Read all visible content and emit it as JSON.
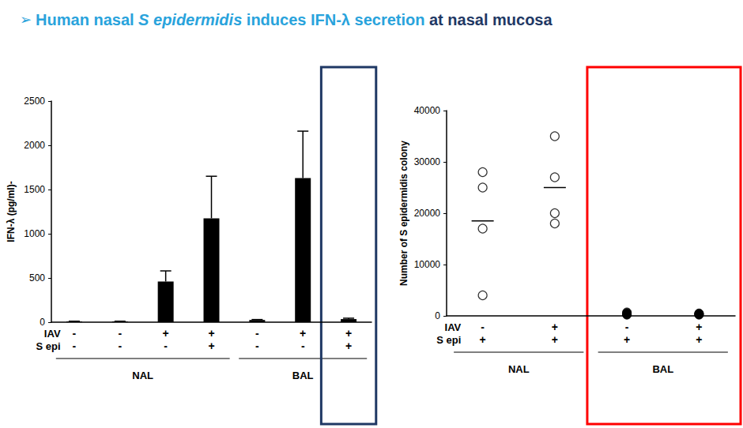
{
  "header": {
    "title": [
      "➢ ",
      "Human nasal ",
      "S epidermidis",
      " induces IFN-λ secretion",
      " at nasal mucosa"
    ]
  },
  "chart_data": [
    {
      "type": "bar",
      "y_label": "IFN-λ (pg/ml)-",
      "categories": [
        "-\n-",
        "-\n-",
        "+\n-",
        "+\n+",
        "-\n-",
        "+\n-",
        "+\n+"
      ],
      "row_labels": [
        "IAV",
        "S epi"
      ],
      "groups": [
        {
          "label": "NAL",
          "size": 4
        },
        {
          "label": "BAL",
          "size": 3
        }
      ],
      "values": [
        8,
        8,
        460,
        1175,
        25,
        1630,
        35
      ],
      "errors": [
        3,
        3,
        120,
        475,
        5,
        530,
        10
      ],
      "color": "#000000",
      "ylim": [
        0,
        2500
      ],
      "yticks": [
        0,
        500,
        1000,
        1500,
        2000,
        2500
      ],
      "grid": false
    },
    {
      "type": "scatter",
      "y_label": "Number of S epidermidis colony",
      "categories": [
        "-\n+",
        "+\n+",
        "-\n+",
        "+\n+"
      ],
      "row_labels": [
        "IAV",
        "S epi"
      ],
      "groups": [
        {
          "label": "NAL",
          "size": 2
        },
        {
          "label": "BAL",
          "size": 2
        }
      ],
      "series": [
        {
          "marker": "open",
          "color": "#000000",
          "values": [
            [
              28000,
              25000,
              17000,
              4000
            ],
            [
              35000,
              27000,
              20000,
              18000
            ],
            null,
            null
          ]
        },
        {
          "marker": "filled",
          "color": "#000000",
          "values": [
            null,
            null,
            [
              300,
              700,
              500,
              200
            ],
            [
              400,
              300,
              500,
              200
            ]
          ]
        }
      ],
      "means": [
        18500,
        25000,
        null,
        null
      ],
      "ylim": [
        0,
        40000
      ],
      "yticks": [
        0,
        10000,
        20000,
        30000,
        40000
      ],
      "grid": false
    }
  ]
}
